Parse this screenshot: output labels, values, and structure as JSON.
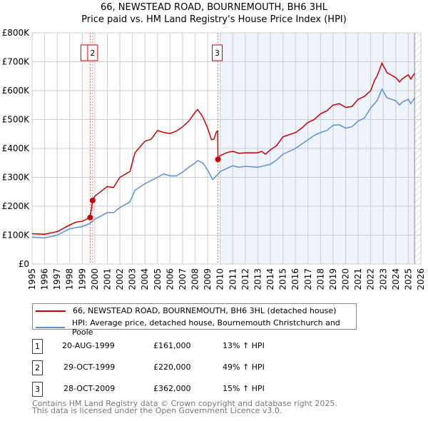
{
  "chart_data": {
    "type": "line",
    "title": "66, NEWSTEAD ROAD, BOURNEMOUTH, BH6 3HL",
    "subtitle": "Price paid vs. HM Land Registry's House Price Index (HPI)",
    "xlim": [
      1995,
      2026
    ],
    "ylim": [
      0,
      800000
    ],
    "x_ticks": [
      "1995",
      "1996",
      "1997",
      "1998",
      "1999",
      "2000",
      "2001",
      "2002",
      "2003",
      "2004",
      "2005",
      "2006",
      "2007",
      "2008",
      "2009",
      "2010",
      "2011",
      "2012",
      "2013",
      "2014",
      "2015",
      "2016",
      "2017",
      "2018",
      "2019",
      "2020",
      "2021",
      "2022",
      "2023",
      "2024",
      "2025",
      "2026"
    ],
    "y_ticks": [
      "£0",
      "£100K",
      "£200K",
      "£300K",
      "£400K",
      "£500K",
      "£600K",
      "£700K",
      "£800K"
    ],
    "grid": true,
    "series": [
      {
        "name": "66, NEWSTEAD ROAD, BOURNEMOUTH, BH6 3HL (detached house)",
        "color": "#cc0000",
        "points": [
          [
            1995,
            105
          ],
          [
            1996,
            103
          ],
          [
            1997,
            112
          ],
          [
            1998,
            135
          ],
          [
            1998.5,
            145
          ],
          [
            1999,
            148
          ],
          [
            1999.63,
            161
          ],
          [
            1999.83,
            220
          ],
          [
            2000,
            235
          ],
          [
            2001,
            268
          ],
          [
            2001.5,
            265
          ],
          [
            2002,
            300
          ],
          [
            2002.8,
            320
          ],
          [
            2003.2,
            385
          ],
          [
            2004,
            425
          ],
          [
            2004.5,
            432
          ],
          [
            2005,
            462
          ],
          [
            2005.5,
            455
          ],
          [
            2006,
            452
          ],
          [
            2006.5,
            460
          ],
          [
            2007,
            475
          ],
          [
            2007.5,
            495
          ],
          [
            2008,
            525
          ],
          [
            2008.2,
            535
          ],
          [
            2008.6,
            510
          ],
          [
            2009,
            470
          ],
          [
            2009.3,
            430
          ],
          [
            2009.5,
            432
          ],
          [
            2009.7,
            458
          ],
          [
            2009.8,
            460
          ],
          [
            2009.82,
            362
          ],
          [
            2010,
            375
          ],
          [
            2010.5,
            385
          ],
          [
            2011,
            390
          ],
          [
            2011.5,
            383
          ],
          [
            2012,
            385
          ],
          [
            2013,
            385
          ],
          [
            2013.3,
            390
          ],
          [
            2013.6,
            380
          ],
          [
            2014,
            395
          ],
          [
            2014.5,
            410
          ],
          [
            2015,
            440
          ],
          [
            2016,
            455
          ],
          [
            2016.5,
            470
          ],
          [
            2017,
            490
          ],
          [
            2017.5,
            500
          ],
          [
            2018,
            520
          ],
          [
            2018.5,
            530
          ],
          [
            2019,
            550
          ],
          [
            2019.5,
            555
          ],
          [
            2020,
            542
          ],
          [
            2020.5,
            545
          ],
          [
            2021,
            570
          ],
          [
            2021.5,
            580
          ],
          [
            2022,
            600
          ],
          [
            2022.3,
            635
          ],
          [
            2022.5,
            650
          ],
          [
            2022.9,
            695
          ],
          [
            2023.3,
            662
          ],
          [
            2024,
            645
          ],
          [
            2024.3,
            630
          ],
          [
            2024.5,
            640
          ],
          [
            2025,
            655
          ],
          [
            2025.2,
            640
          ],
          [
            2025.5,
            660
          ]
        ]
      },
      {
        "name": "HPI: Average price, detached house, Bournemouth Christchurch and Poole",
        "color": "#5b8fd6",
        "points": [
          [
            1995,
            93
          ],
          [
            1996,
            90
          ],
          [
            1997,
            100
          ],
          [
            1998,
            122
          ],
          [
            1999,
            130
          ],
          [
            1999.6,
            140
          ],
          [
            2000,
            155
          ],
          [
            2001,
            178
          ],
          [
            2001.5,
            178
          ],
          [
            2002,
            195
          ],
          [
            2002.8,
            215
          ],
          [
            2003.2,
            255
          ],
          [
            2004,
            278
          ],
          [
            2005,
            300
          ],
          [
            2005.5,
            312
          ],
          [
            2006,
            305
          ],
          [
            2006.5,
            305
          ],
          [
            2007,
            318
          ],
          [
            2007.5,
            335
          ],
          [
            2008,
            350
          ],
          [
            2008.2,
            358
          ],
          [
            2008.6,
            350
          ],
          [
            2009,
            325
          ],
          [
            2009.4,
            292
          ],
          [
            2009.8,
            310
          ],
          [
            2010,
            320
          ],
          [
            2010.5,
            330
          ],
          [
            2011,
            340
          ],
          [
            2011.5,
            335
          ],
          [
            2012,
            338
          ],
          [
            2013,
            335
          ],
          [
            2013.5,
            340
          ],
          [
            2014,
            345
          ],
          [
            2014.5,
            360
          ],
          [
            2015,
            380
          ],
          [
            2016,
            400
          ],
          [
            2016.5,
            415
          ],
          [
            2017,
            430
          ],
          [
            2017.5,
            445
          ],
          [
            2018,
            455
          ],
          [
            2018.5,
            462
          ],
          [
            2019,
            480
          ],
          [
            2019.5,
            482
          ],
          [
            2020,
            470
          ],
          [
            2020.5,
            475
          ],
          [
            2021,
            495
          ],
          [
            2021.5,
            505
          ],
          [
            2022,
            540
          ],
          [
            2022.5,
            565
          ],
          [
            2022.9,
            605
          ],
          [
            2023.3,
            575
          ],
          [
            2024,
            565
          ],
          [
            2024.3,
            550
          ],
          [
            2024.5,
            560
          ],
          [
            2025,
            570
          ],
          [
            2025.2,
            555
          ],
          [
            2025.5,
            575
          ]
        ]
      }
    ],
    "sales": [
      {
        "label": "1",
        "x": 1999.63,
        "y": 161
      },
      {
        "label": "2",
        "x": 1999.83,
        "y": 220
      },
      {
        "label": "3",
        "x": 2009.82,
        "y": 362
      }
    ],
    "shaded_from": 2010,
    "forecast_from": 2025.5
  },
  "legend": {
    "red": "66, NEWSTEAD ROAD, BOURNEMOUTH, BH6 3HL (detached house)",
    "blue": "HPI: Average price, detached house, Bournemouth Christchurch and Poole"
  },
  "sales_table": [
    {
      "num": "1",
      "date": "20-AUG-1999",
      "price": "£161,000",
      "hpi": "13% ↑ HPI"
    },
    {
      "num": "2",
      "date": "29-OCT-1999",
      "price": "£220,000",
      "hpi": "49% ↑ HPI"
    },
    {
      "num": "3",
      "date": "28-OCT-2009",
      "price": "£362,000",
      "hpi": "15% ↑ HPI"
    }
  ],
  "footer": {
    "line1": "Contains HM Land Registry data © Crown copyright and database right 2025.",
    "line2": "This data is licensed under the Open Government Licence v3.0."
  }
}
